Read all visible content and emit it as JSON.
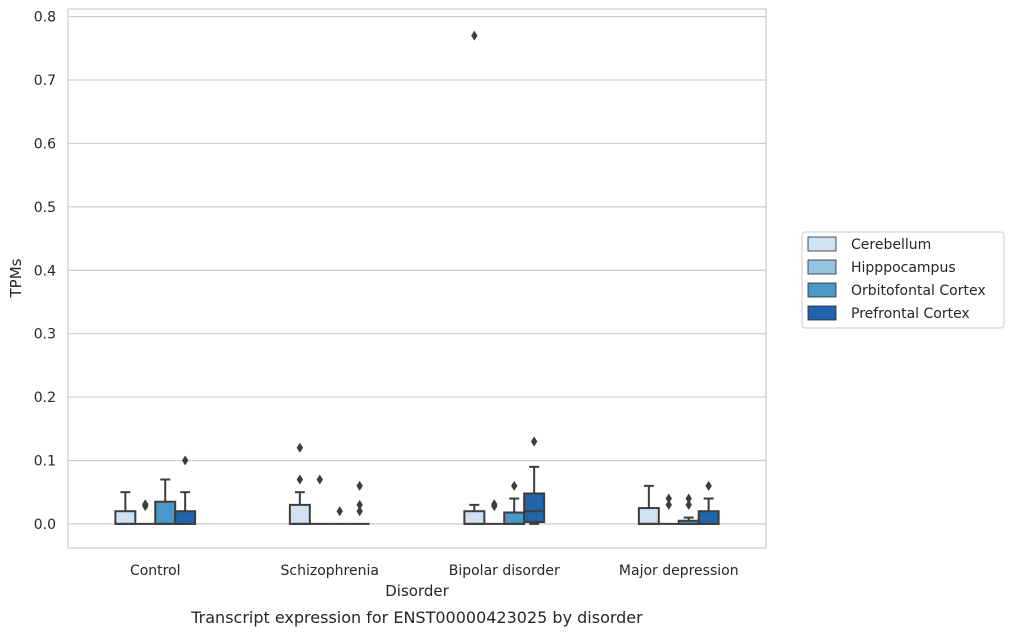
{
  "caption": "Transcript expression for ENST00000423025 by disorder",
  "chart_data": {
    "type": "box",
    "title": "",
    "xlabel": "Disorder",
    "ylabel": "TPMs",
    "ylim": [
      -0.038,
      0.812
    ],
    "yticks": [
      0.0,
      0.1,
      0.2,
      0.3,
      0.4,
      0.5,
      0.6,
      0.7,
      0.8
    ],
    "ytick_labels": [
      "0.0",
      "0.1",
      "0.2",
      "0.3",
      "0.4",
      "0.5",
      "0.6",
      "0.7",
      "0.8"
    ],
    "grid": "horizontal",
    "legend_position": "right",
    "categories": [
      "Control",
      "Schizophrenia",
      "Bipolar disorder",
      "Major depression"
    ],
    "series": [
      {
        "name": "Cerebellum",
        "color": "#d0e1f2",
        "boxes": [
          {
            "q1": 0.0,
            "median": 0.0,
            "q3": 0.02,
            "whislo": 0.0,
            "whishi": 0.05,
            "fliers": []
          },
          {
            "q1": 0.0,
            "median": 0.0,
            "q3": 0.03,
            "whislo": 0.0,
            "whishi": 0.05,
            "fliers": [
              0.07,
              0.12
            ]
          },
          {
            "q1": 0.0,
            "median": 0.0,
            "q3": 0.02,
            "whislo": 0.0,
            "whishi": 0.03,
            "fliers": [
              0.77
            ]
          },
          {
            "q1": 0.0,
            "median": 0.0,
            "q3": 0.025,
            "whislo": 0.0,
            "whishi": 0.06,
            "fliers": []
          }
        ]
      },
      {
        "name": "Hipppocampus",
        "color": "#94c4df",
        "boxes": [
          {
            "q1": 0.0,
            "median": 0.0,
            "q3": 0.0,
            "whislo": 0.0,
            "whishi": 0.0,
            "fliers": [
              0.028,
              0.031
            ]
          },
          {
            "q1": 0.0,
            "median": 0.0,
            "q3": 0.0,
            "whislo": 0.0,
            "whishi": 0.0,
            "fliers": [
              0.07
            ]
          },
          {
            "q1": 0.0,
            "median": 0.0,
            "q3": 0.0,
            "whislo": 0.0,
            "whishi": 0.0,
            "fliers": [
              0.028,
              0.031
            ]
          },
          {
            "q1": 0.0,
            "median": 0.0,
            "q3": 0.0,
            "whislo": 0.0,
            "whishi": 0.0,
            "fliers": [
              0.03,
              0.04
            ]
          }
        ]
      },
      {
        "name": "Orbitofontal Cortex",
        "color": "#4a98c9",
        "boxes": [
          {
            "q1": 0.0,
            "median": 0.0,
            "q3": 0.035,
            "whislo": 0.0,
            "whishi": 0.07,
            "fliers": []
          },
          {
            "q1": 0.0,
            "median": 0.0,
            "q3": 0.0,
            "whislo": 0.0,
            "whishi": 0.0,
            "fliers": [
              0.02
            ]
          },
          {
            "q1": 0.0,
            "median": 0.0,
            "q3": 0.018,
            "whislo": 0.0,
            "whishi": 0.04,
            "fliers": [
              0.06
            ]
          },
          {
            "q1": 0.0,
            "median": 0.0,
            "q3": 0.005,
            "whislo": 0.0,
            "whishi": 0.01,
            "fliers": [
              0.03,
              0.04
            ]
          }
        ]
      },
      {
        "name": "Prefrontal Cortex",
        "color": "#2164ab",
        "boxes": [
          {
            "q1": 0.0,
            "median": 0.0,
            "q3": 0.02,
            "whislo": 0.0,
            "whishi": 0.05,
            "fliers": [
              0.1
            ]
          },
          {
            "q1": 0.0,
            "median": 0.0,
            "q3": 0.0,
            "whislo": 0.0,
            "whishi": 0.0,
            "fliers": [
              0.02,
              0.03,
              0.06
            ]
          },
          {
            "q1": 0.003,
            "median": 0.02,
            "q3": 0.048,
            "whislo": 0.0,
            "whishi": 0.09,
            "fliers": [
              0.13
            ]
          },
          {
            "q1": 0.0,
            "median": 0.0,
            "q3": 0.02,
            "whislo": 0.0,
            "whishi": 0.04,
            "fliers": [
              0.06
            ]
          }
        ]
      }
    ]
  }
}
